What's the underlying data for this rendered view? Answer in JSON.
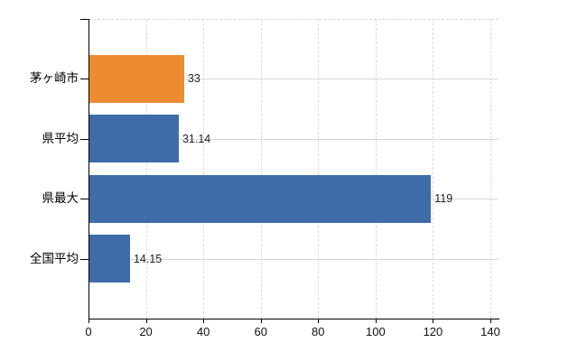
{
  "chart_data": {
    "type": "bar",
    "orientation": "horizontal",
    "title": "",
    "categories": [
      "茅ヶ崎市",
      "県平均",
      "県最大",
      "全国平均"
    ],
    "values": [
      33,
      31.14,
      119,
      14.15
    ],
    "value_labels": [
      "33",
      "31.14",
      "119",
      "14.15"
    ],
    "series": [
      {
        "name": "value",
        "values": [
          33,
          31.14,
          119,
          14.15
        ]
      }
    ],
    "bar_colors": [
      "#ec8b31",
      "#3d6ca8",
      "#3d6ca8",
      "#3d6ca8"
    ],
    "highlight_color": "#ec8b31",
    "default_bar_color": "#3d6ca8",
    "xlim": [
      0,
      140
    ],
    "x_ticks": [
      "0",
      "20",
      "40",
      "60",
      "80",
      "100",
      "120",
      "140"
    ],
    "x_tick_values": [
      0,
      20,
      40,
      60,
      80,
      100,
      120,
      140
    ],
    "legend_position": "none",
    "grid": {
      "vertical": "dashed",
      "horizontal": "solid",
      "visible": true
    },
    "background_color": "#ffffff",
    "axis_color": "#000000",
    "grid_color": "#d9d9d9",
    "text_color": "#111111"
  }
}
